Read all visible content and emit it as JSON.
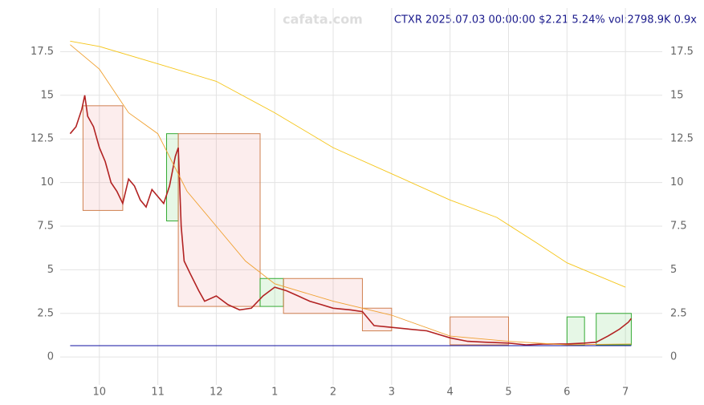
{
  "chart_data": {
    "type": "line",
    "watermark": "cafata.com",
    "title": "CTXR 2025.07.03 00:00:00 $2.21 5.24% vol:2798.9K 0.9x",
    "xlim": [
      9.33,
      19.63
    ],
    "ylim": [
      -1.6,
      20
    ],
    "xticks": [
      {
        "value": 10,
        "label": "10"
      },
      {
        "value": 11,
        "label": "11"
      },
      {
        "value": 12,
        "label": "12"
      },
      {
        "value": 13,
        "label": "1"
      },
      {
        "value": 14,
        "label": "2"
      },
      {
        "value": 15,
        "label": "3"
      },
      {
        "value": 16,
        "label": "4"
      },
      {
        "value": 17,
        "label": "5"
      },
      {
        "value": 18,
        "label": "6"
      },
      {
        "value": 19,
        "label": "7"
      }
    ],
    "yticks": [
      0,
      2.5,
      5,
      7.5,
      10,
      12.5,
      15,
      17.5
    ],
    "grid": true,
    "series": [
      {
        "name": "close",
        "color": "#b22222",
        "width": 1.6,
        "x": [
          9.5,
          9.6,
          9.7,
          9.75,
          9.8,
          9.9,
          10.0,
          10.1,
          10.2,
          10.3,
          10.4,
          10.5,
          10.6,
          10.7,
          10.8,
          10.9,
          11.0,
          11.1,
          11.2,
          11.3,
          11.35,
          11.4,
          11.45,
          11.55,
          11.7,
          11.8,
          12.0,
          12.2,
          12.4,
          12.6,
          12.8,
          13.0,
          13.2,
          13.4,
          13.6,
          13.8,
          14.0,
          14.3,
          14.5,
          14.6,
          14.7,
          15.0,
          15.3,
          15.6,
          16.0,
          16.3,
          16.6,
          17.0,
          17.3,
          17.6,
          18.0,
          18.3,
          18.5,
          18.7,
          18.9,
          19.05,
          19.1
        ],
        "values": [
          12.8,
          13.2,
          14.2,
          15.0,
          13.8,
          13.2,
          12.0,
          11.2,
          10.0,
          9.5,
          8.8,
          10.2,
          9.8,
          9.0,
          8.6,
          9.6,
          9.2,
          8.8,
          9.8,
          11.5,
          12.0,
          7.5,
          5.5,
          4.8,
          3.8,
          3.2,
          3.5,
          3.0,
          2.7,
          2.8,
          3.5,
          4.0,
          3.8,
          3.5,
          3.2,
          3.0,
          2.8,
          2.7,
          2.6,
          2.2,
          1.8,
          1.7,
          1.6,
          1.5,
          1.1,
          0.9,
          0.85,
          0.8,
          0.7,
          0.75,
          0.75,
          0.8,
          0.85,
          1.2,
          1.6,
          2.0,
          2.21
        ]
      },
      {
        "name": "ma-long",
        "color": "#f5c518",
        "width": 0.9,
        "x": [
          9.5,
          10,
          11,
          12,
          13,
          14,
          15,
          16,
          16.8,
          17.5,
          18,
          19
        ],
        "values": [
          18.1,
          17.8,
          16.8,
          15.8,
          14.0,
          12.0,
          10.5,
          9.0,
          8.0,
          6.5,
          5.4,
          4.0
        ]
      },
      {
        "name": "ma-mid",
        "color": "#f0a030",
        "width": 0.9,
        "x": [
          9.5,
          10,
          10.5,
          11,
          11.5,
          12,
          12.5,
          13,
          14,
          15,
          16,
          17,
          18,
          19.1
        ],
        "values": [
          17.9,
          16.5,
          14.0,
          12.8,
          9.5,
          7.5,
          5.5,
          4.2,
          3.2,
          2.4,
          1.2,
          0.9,
          0.7,
          0.75
        ]
      },
      {
        "name": "support",
        "color": "#1010a0",
        "width": 0.9,
        "x": [
          9.5,
          19.1
        ],
        "values": [
          0.65,
          0.65
        ]
      }
    ],
    "boxes": [
      {
        "x0": 9.72,
        "x1": 10.4,
        "y0": 8.4,
        "y1": 14.4,
        "color": "#e88"
      },
      {
        "x0": 11.15,
        "x1": 11.35,
        "y0": 7.8,
        "y1": 12.8,
        "color": "#5c5"
      },
      {
        "x0": 11.35,
        "x1": 12.75,
        "y0": 2.9,
        "y1": 12.8,
        "color": "#e88"
      },
      {
        "x0": 12.75,
        "x1": 13.15,
        "y0": 2.9,
        "y1": 4.5,
        "color": "#5c5"
      },
      {
        "x0": 13.15,
        "x1": 14.5,
        "y0": 2.5,
        "y1": 4.5,
        "color": "#e88"
      },
      {
        "x0": 14.5,
        "x1": 15.0,
        "y0": 1.5,
        "y1": 2.8,
        "color": "#e88"
      },
      {
        "x0": 16.0,
        "x1": 17.0,
        "y0": 0.7,
        "y1": 2.3,
        "color": "#e88"
      },
      {
        "x0": 18.0,
        "x1": 18.3,
        "y0": 0.7,
        "y1": 2.3,
        "color": "#5c5"
      },
      {
        "x0": 18.5,
        "x1": 19.1,
        "y0": 0.7,
        "y1": 2.5,
        "color": "#5c5"
      }
    ]
  }
}
